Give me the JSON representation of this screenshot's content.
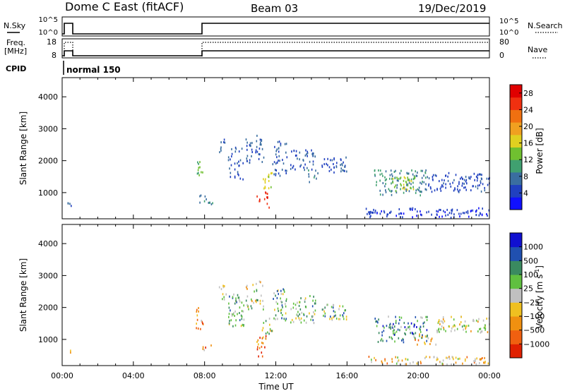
{
  "header": {
    "title": "Dome C East (fitACF)",
    "beam": "Beam 03",
    "date": "19/Dec/2019"
  },
  "status_panels": {
    "nsky": {
      "label": "N.Sky",
      "ticks_left": [
        "10^5",
        "10^0"
      ],
      "ticks_right": [
        "10^5",
        "10^0"
      ],
      "right_label": "N.Search"
    },
    "freq": {
      "label_line1": "Freq.",
      "label_line2": "[MHz]",
      "ticks_left": [
        "18",
        "8"
      ],
      "ticks_right": [
        "80",
        "0"
      ],
      "right_label": "Nave"
    },
    "cpid": {
      "label": "CPID",
      "value": "normal 150"
    }
  },
  "chart_data": [
    {
      "type": "heatmap",
      "name": "power",
      "xlabel": "Time UT",
      "ylabel": "Slant Range [km]",
      "xlim": [
        0,
        24
      ],
      "ylim": [
        180,
        4600
      ],
      "y_ticks": [
        "1000",
        "2000",
        "3000",
        "4000"
      ],
      "colorbar": {
        "label": "Power [dB]",
        "ticks": [
          "4",
          "8",
          "12",
          "16",
          "20",
          "24",
          "28"
        ],
        "range": [
          0,
          30
        ],
        "colors": [
          "#1010ff",
          "#2040c0",
          "#3a6ea0",
          "#40a070",
          "#70c030",
          "#e0d020",
          "#f0a020",
          "#f07010",
          "#f03010",
          "#e00000"
        ]
      },
      "clusters": [
        {
          "t": [
            0.2,
            0.5
          ],
          "r": [
            520,
            700
          ],
          "p": 6
        },
        {
          "t": [
            7.5,
            7.9
          ],
          "r": [
            1300,
            2000
          ],
          "p": 12
        },
        {
          "t": [
            7.7,
            8.5
          ],
          "r": [
            600,
            900
          ],
          "p": 8
        },
        {
          "t": [
            8.8,
            9.2
          ],
          "r": [
            2200,
            2700
          ],
          "p": 6
        },
        {
          "t": [
            9.3,
            10.2
          ],
          "r": [
            1400,
            2400
          ],
          "p": 6
        },
        {
          "t": [
            10.3,
            11.3
          ],
          "r": [
            1900,
            2800
          ],
          "p": 6
        },
        {
          "t": [
            10.9,
            11.6
          ],
          "r": [
            500,
            1000
          ],
          "p": 26
        },
        {
          "t": [
            11.2,
            11.8
          ],
          "r": [
            1100,
            1600
          ],
          "p": 16
        },
        {
          "t": [
            11.8,
            12.6
          ],
          "r": [
            1500,
            2600
          ],
          "p": 6
        },
        {
          "t": [
            12.8,
            14.2
          ],
          "r": [
            1700,
            2400
          ],
          "p": 6
        },
        {
          "t": [
            13.8,
            14.4
          ],
          "r": [
            1300,
            1700
          ],
          "p": 8
        },
        {
          "t": [
            14.5,
            16.0
          ],
          "r": [
            1600,
            2100
          ],
          "p": 5
        },
        {
          "t": [
            17.5,
            20.5
          ],
          "r": [
            900,
            1700
          ],
          "p": 9
        },
        {
          "t": [
            18.5,
            19.8
          ],
          "r": [
            1000,
            1500
          ],
          "p": 14
        },
        {
          "t": [
            20.5,
            24.0
          ],
          "r": [
            1000,
            1600
          ],
          "p": 5
        },
        {
          "t": [
            17.0,
            24.0
          ],
          "r": [
            200,
            500
          ],
          "p": 4
        }
      ]
    },
    {
      "type": "heatmap",
      "name": "velocity",
      "xlabel": "Time UT",
      "ylabel": "Slant Range [km]",
      "xlim": [
        0,
        24
      ],
      "ylim": [
        180,
        4600
      ],
      "y_ticks": [
        "1000",
        "2000",
        "3000",
        "4000"
      ],
      "x_ticks": [
        "00:00",
        "04:00",
        "08:00",
        "12:00",
        "16:00",
        "20:00",
        "00:00"
      ],
      "colorbar": {
        "label": "Velocity [m s^-1]",
        "ticks": [
          "1000",
          "500",
          "100",
          "25",
          "−25",
          "−100",
          "−500",
          "−1000"
        ],
        "colors": [
          "#1010d0",
          "#2050b0",
          "#3a8a60",
          "#60c040",
          "#c0c0c0",
          "#f0c020",
          "#f09010",
          "#f06010",
          "#e02000"
        ]
      },
      "clusters": [
        {
          "t": [
            0.2,
            0.5
          ],
          "r": [
            520,
            700
          ],
          "v": 4
        },
        {
          "t": [
            7.5,
            7.9
          ],
          "r": [
            1300,
            2000
          ],
          "v": 6
        },
        {
          "t": [
            7.8,
            8.5
          ],
          "r": [
            650,
            850
          ],
          "v": 6
        },
        {
          "t": [
            8.8,
            9.2
          ],
          "r": [
            2200,
            2700
          ],
          "v": 4
        },
        {
          "t": [
            9.3,
            10.2
          ],
          "r": [
            1400,
            2400
          ],
          "v": 3
        },
        {
          "t": [
            10.3,
            11.3
          ],
          "r": [
            1900,
            2800
          ],
          "v": 4
        },
        {
          "t": [
            10.9,
            11.6
          ],
          "r": [
            450,
            1100
          ],
          "v": 6
        },
        {
          "t": [
            11.2,
            11.8
          ],
          "r": [
            1100,
            1700
          ],
          "v": 4
        },
        {
          "t": [
            11.8,
            12.6
          ],
          "r": [
            1500,
            2600
          ],
          "v": 3
        },
        {
          "t": [
            12.8,
            14.2
          ],
          "r": [
            1500,
            2400
          ],
          "v": 3
        },
        {
          "t": [
            14.5,
            16.0
          ],
          "r": [
            1600,
            2100
          ],
          "v": 3
        },
        {
          "t": [
            17.5,
            20.5
          ],
          "r": [
            900,
            1700
          ],
          "v": 2
        },
        {
          "t": [
            19.8,
            21.0
          ],
          "r": [
            800,
            1200
          ],
          "v": 6
        },
        {
          "t": [
            21.0,
            24.0
          ],
          "r": [
            1200,
            1700
          ],
          "v": 4
        },
        {
          "t": [
            17.0,
            24.0
          ],
          "r": [
            200,
            450
          ],
          "v": 5
        }
      ]
    }
  ]
}
